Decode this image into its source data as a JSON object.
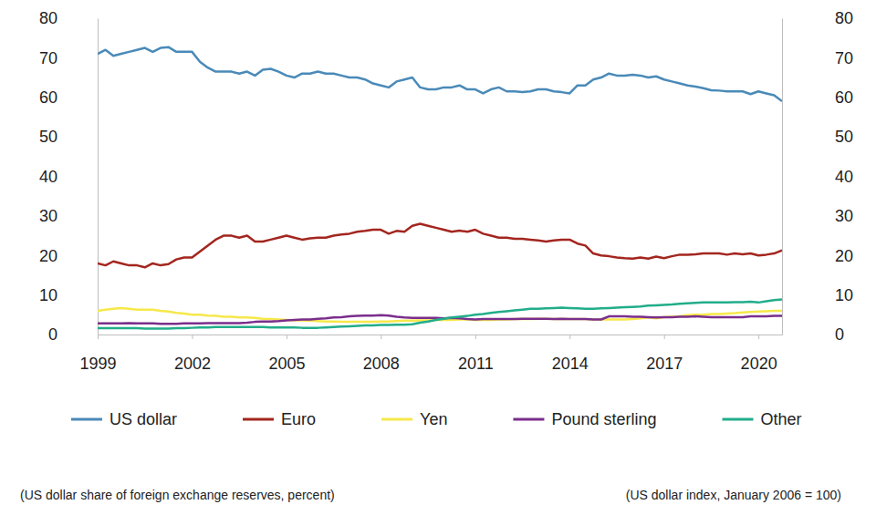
{
  "chart_data": {
    "type": "line",
    "x": [
      1999,
      1999.25,
      1999.5,
      1999.75,
      2000,
      2000.25,
      2000.5,
      2000.75,
      2001,
      2001.25,
      2001.5,
      2001.75,
      2002,
      2002.25,
      2002.5,
      2002.75,
      2003,
      2003.25,
      2003.5,
      2003.75,
      2004,
      2004.25,
      2004.5,
      2004.75,
      2005,
      2005.25,
      2005.5,
      2005.75,
      2006,
      2006.25,
      2006.5,
      2006.75,
      2007,
      2007.25,
      2007.5,
      2007.75,
      2008,
      2008.25,
      2008.5,
      2008.75,
      2009,
      2009.25,
      2009.5,
      2009.75,
      2010,
      2010.25,
      2010.5,
      2010.75,
      2011,
      2011.25,
      2011.5,
      2011.75,
      2012,
      2012.25,
      2012.5,
      2012.75,
      2013,
      2013.25,
      2013.5,
      2013.75,
      2014,
      2014.25,
      2014.5,
      2014.75,
      2015,
      2015.25,
      2015.5,
      2015.75,
      2016,
      2016.25,
      2016.5,
      2016.75,
      2017,
      2017.25,
      2017.5,
      2017.75,
      2018,
      2018.25,
      2018.5,
      2018.75,
      2019,
      2019.25,
      2019.5,
      2019.75,
      2020,
      2020.25,
      2020.5,
      2020.75
    ],
    "series": [
      {
        "name": "US dollar",
        "color": "#4a8ab8",
        "values": [
          71,
          72,
          70.5,
          71,
          71.5,
          72,
          72.5,
          71.5,
          72.5,
          72.7,
          71.5,
          71.5,
          71.5,
          69,
          67.5,
          66.5,
          66.5,
          66.5,
          66,
          66.5,
          65.5,
          67,
          67.2,
          66.5,
          65.5,
          65,
          66,
          66,
          66.5,
          66,
          66,
          65.5,
          65,
          65,
          64.5,
          63.5,
          63,
          62.5,
          64,
          64.5,
          65,
          62.5,
          62,
          62,
          62.5,
          62.5,
          63,
          62,
          62,
          61,
          62,
          62.5,
          61.5,
          61.5,
          61.3,
          61.5,
          62,
          62,
          61.5,
          61.3,
          61,
          63,
          63,
          64.5,
          65,
          66,
          65.5,
          65.5,
          65.7,
          65.5,
          65,
          65.3,
          64.5,
          64,
          63.5,
          63,
          62.7,
          62.3,
          61.8,
          61.7,
          61.5,
          61.5,
          61.5,
          60.8,
          61.5,
          61,
          60.5,
          59
        ]
      },
      {
        "name": "Euro",
        "color": "#a3261f",
        "values": [
          18,
          17.5,
          18.5,
          18,
          17.5,
          17.5,
          17,
          18,
          17.5,
          17.8,
          19,
          19.5,
          19.5,
          21,
          22.5,
          24,
          25,
          25,
          24.5,
          25,
          23.5,
          23.5,
          24,
          24.5,
          25,
          24.5,
          24,
          24.3,
          24.5,
          24.5,
          25,
          25.3,
          25.5,
          26,
          26.2,
          26.5,
          26.5,
          25.5,
          26.2,
          26,
          27.5,
          28,
          27.5,
          27,
          26.5,
          26,
          26.3,
          26,
          26.5,
          25.5,
          25,
          24.5,
          24.5,
          24.2,
          24.2,
          24,
          23.8,
          23.5,
          23.8,
          24,
          24,
          23,
          22.5,
          20.5,
          20,
          19.8,
          19.5,
          19.3,
          19.2,
          19.5,
          19.2,
          19.7,
          19.3,
          19.8,
          20.2,
          20.2,
          20.3,
          20.5,
          20.5,
          20.5,
          20.2,
          20.5,
          20.3,
          20.5,
          20,
          20.2,
          20.5,
          21.3
        ]
      },
      {
        "name": "Yen",
        "color": "#f6e84a",
        "values": [
          6,
          6.3,
          6.5,
          6.7,
          6.5,
          6.3,
          6.3,
          6.3,
          6,
          5.8,
          5.5,
          5.3,
          5,
          5,
          4.8,
          4.7,
          4.5,
          4.5,
          4.3,
          4.3,
          4.2,
          4,
          3.9,
          3.8,
          3.7,
          3.6,
          3.6,
          3.5,
          3.4,
          3.3,
          3.3,
          3.2,
          3.2,
          3.2,
          3.2,
          3.2,
          3.3,
          3.3,
          3.4,
          3.5,
          3.5,
          3.6,
          3.6,
          3.7,
          3.7,
          3.7,
          3.8,
          3.8,
          3.7,
          3.7,
          3.7,
          3.8,
          3.8,
          3.9,
          3.9,
          3.9,
          4,
          4,
          3.9,
          3.9,
          3.9,
          3.9,
          3.9,
          3.8,
          3.8,
          3.8,
          3.8,
          3.8,
          3.9,
          4.1,
          4.3,
          4.1,
          4.4,
          4.5,
          4.6,
          4.9,
          5,
          5,
          5.2,
          5.2,
          5.3,
          5.4,
          5.6,
          5.7,
          5.8,
          5.9,
          6,
          6
        ]
      },
      {
        "name": "Pound sterling",
        "color": "#7a2e8c",
        "values": [
          2.8,
          2.8,
          2.8,
          2.8,
          2.9,
          2.8,
          2.8,
          2.8,
          2.7,
          2.7,
          2.7,
          2.8,
          2.8,
          2.8,
          2.9,
          2.9,
          2.9,
          2.9,
          2.9,
          3,
          3.2,
          3.3,
          3.3,
          3.4,
          3.6,
          3.7,
          3.8,
          3.8,
          4,
          4.1,
          4.3,
          4.4,
          4.6,
          4.7,
          4.8,
          4.8,
          4.9,
          4.8,
          4.5,
          4.3,
          4.2,
          4.2,
          4.2,
          4.2,
          4.1,
          4.2,
          4.1,
          3.9,
          3.8,
          3.9,
          3.9,
          3.9,
          3.9,
          3.9,
          4,
          4,
          4,
          4,
          3.9,
          4,
          3.9,
          3.9,
          3.9,
          3.8,
          3.8,
          4.6,
          4.6,
          4.6,
          4.5,
          4.5,
          4.4,
          4.3,
          4.4,
          4.4,
          4.5,
          4.5,
          4.6,
          4.5,
          4.4,
          4.4,
          4.4,
          4.4,
          4.4,
          4.6,
          4.6,
          4.6,
          4.7,
          4.7
        ]
      },
      {
        "name": "Other",
        "color": "#22ad8a",
        "values": [
          1.6,
          1.6,
          1.6,
          1.6,
          1.6,
          1.6,
          1.5,
          1.5,
          1.5,
          1.5,
          1.6,
          1.6,
          1.7,
          1.8,
          1.8,
          1.9,
          1.9,
          1.9,
          1.9,
          1.9,
          1.9,
          1.9,
          1.8,
          1.8,
          1.8,
          1.8,
          1.7,
          1.7,
          1.7,
          1.8,
          1.9,
          2,
          2.1,
          2.2,
          2.3,
          2.3,
          2.4,
          2.4,
          2.5,
          2.5,
          2.6,
          3,
          3.3,
          3.7,
          4,
          4.3,
          4.5,
          4.7,
          5,
          5.2,
          5.5,
          5.7,
          5.9,
          6.1,
          6.3,
          6.5,
          6.5,
          6.6,
          6.7,
          6.8,
          6.7,
          6.6,
          6.5,
          6.5,
          6.6,
          6.7,
          6.8,
          6.9,
          7,
          7.1,
          7.3,
          7.4,
          7.5,
          7.6,
          7.8,
          7.9,
          8,
          8.1,
          8.1,
          8.1,
          8.1,
          8.2,
          8.2,
          8.3,
          8.1,
          8.4,
          8.7,
          8.9
        ]
      }
    ],
    "xlim": [
      1999,
      2020.75
    ],
    "xticks": [
      1999,
      2002,
      2005,
      2008,
      2011,
      2014,
      2017,
      2020
    ],
    "ylim": [
      0,
      80
    ],
    "yticks": [
      0,
      10,
      20,
      30,
      40,
      50,
      60,
      70,
      80
    ],
    "y2lim": [
      0,
      80
    ],
    "y2ticks": [
      0,
      10,
      20,
      30,
      40,
      50,
      60,
      70,
      80
    ],
    "grid": false,
    "legend": "bottom",
    "annotations": [
      "(US dollar share of foreign exchange reserves, percent)",
      "(US dollar index, January 2006 = 100)"
    ]
  }
}
